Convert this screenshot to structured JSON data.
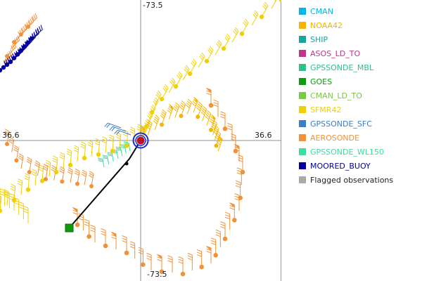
{
  "axis_labels": {
    "top": "-73.5",
    "bottom": "-73.5",
    "left": "36.6",
    "right": "36.6"
  },
  "legend": [
    {
      "label": "CMAN",
      "color": "#00b7eb"
    },
    {
      "label": "NOAA42",
      "color": "#f5b400"
    },
    {
      "label": "SHIP",
      "color": "#13a89e"
    },
    {
      "label": "ASOS_LD_TO",
      "color": "#c2348a"
    },
    {
      "label": "GPSSONDE_MBL",
      "color": "#2cc08a"
    },
    {
      "label": "GOES",
      "color": "#0f9a0f"
    },
    {
      "label": "CMAN_LD_TO",
      "color": "#7ac943"
    },
    {
      "label": "SFMR42",
      "color": "#f0d000"
    },
    {
      "label": "GPSSONDE_SFC",
      "color": "#3a7fc1"
    },
    {
      "label": "AEROSONDE",
      "color": "#f0923a"
    },
    {
      "label": "GPSSONDE_WL150",
      "color": "#3dde9c"
    },
    {
      "label": "MOORED_BUOY",
      "color": "#00009c"
    },
    {
      "label": "Flagged observations",
      "color": "#aaaaaa"
    }
  ],
  "colors": {
    "sfmr": "#f0d000",
    "noaa": "#f5b400",
    "aerosonde": "#f0923a",
    "moored": "#00009c",
    "goes": "#0f9a0f",
    "gpssonde_wl150": "#3dde9c",
    "gpssonde_sfc": "#3a7fc1",
    "center_ring": "#1a2fd0",
    "center_fill": "#c0101c"
  }
}
